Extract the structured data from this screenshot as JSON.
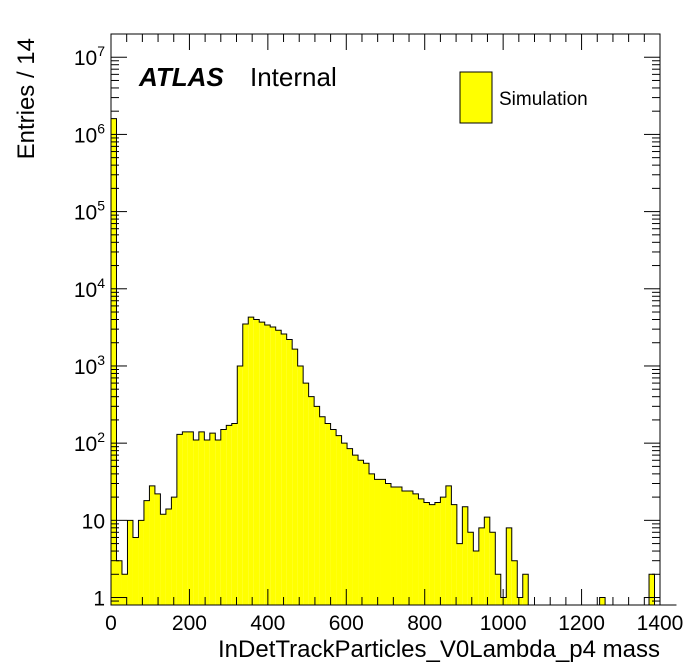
{
  "chart_data": {
    "type": "histogram",
    "xlabel": "InDetTrackParticles_V0Lambda_p4 mass",
    "ylabel": "Entries / 14",
    "xlim": [
      0,
      1400
    ],
    "ylim": [
      0.8,
      20000000
    ],
    "yscale": "log",
    "bin_width": 14,
    "x_ticks": [
      "0",
      "200",
      "400",
      "600",
      "800",
      "1000",
      "1200",
      "1400"
    ],
    "y_ticks": [
      {
        "base": "1",
        "exp": ""
      },
      {
        "base": "10",
        "exp": ""
      },
      {
        "base": "10",
        "exp": "2"
      },
      {
        "base": "10",
        "exp": "3"
      },
      {
        "base": "10",
        "exp": "4"
      },
      {
        "base": "10",
        "exp": "5"
      },
      {
        "base": "10",
        "exp": "6"
      },
      {
        "base": "10",
        "exp": "7"
      }
    ],
    "fill_color": "#ffff00",
    "line_color": "#000000",
    "legend": {
      "label": "Simulation",
      "position": "top-right"
    },
    "annotation": {
      "experiment": "ATLAS",
      "status": "Internal"
    },
    "bin_values": [
      1600000,
      3,
      2,
      10,
      6,
      10,
      18,
      28,
      22,
      12,
      14,
      20,
      130,
      140,
      140,
      110,
      140,
      110,
      135,
      110,
      150,
      170,
      180,
      1000,
      3500,
      4300,
      4000,
      3700,
      3400,
      3200,
      2900,
      2600,
      2200,
      1650,
      1000,
      600,
      400,
      300,
      220,
      180,
      150,
      125,
      100,
      85,
      70,
      60,
      55,
      40,
      34,
      34,
      30,
      27,
      27,
      24,
      24,
      22,
      19,
      17,
      16,
      17,
      20,
      28,
      16,
      5,
      15,
      7,
      4,
      8,
      11,
      7,
      2,
      1,
      8,
      3,
      1,
      2,
      0,
      0,
      0,
      0,
      0,
      0,
      0,
      0,
      0,
      0,
      0,
      0,
      0,
      1,
      0,
      0,
      0,
      0,
      0,
      0,
      0,
      0,
      2,
      0,
      0,
      0,
      0
    ]
  }
}
